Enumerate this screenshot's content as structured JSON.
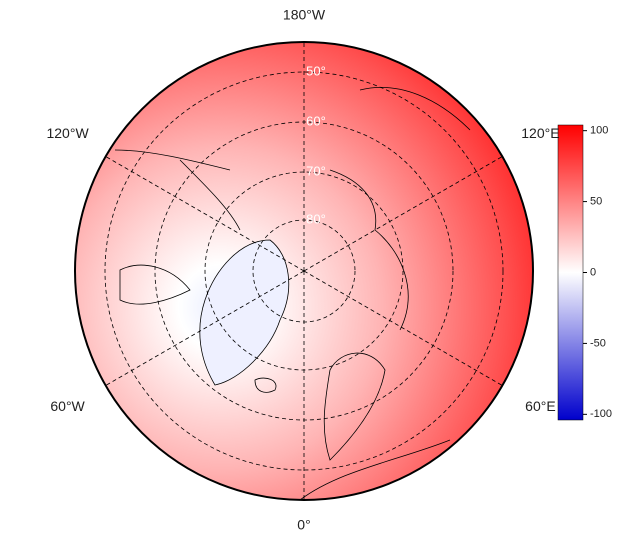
{
  "map": {
    "longitude_labels": [
      "180°W",
      "120°E",
      "60°E",
      "0°",
      "60°W",
      "120°W"
    ],
    "latitude_labels": [
      "50°",
      "60°",
      "70°",
      "80°"
    ]
  },
  "colorbar": {
    "range": [
      -104,
      104
    ],
    "ticks": [
      100,
      50,
      0,
      -50,
      -100
    ],
    "colors": [
      "#0000cc",
      "#ffffff",
      "#ff0000"
    ]
  }
}
